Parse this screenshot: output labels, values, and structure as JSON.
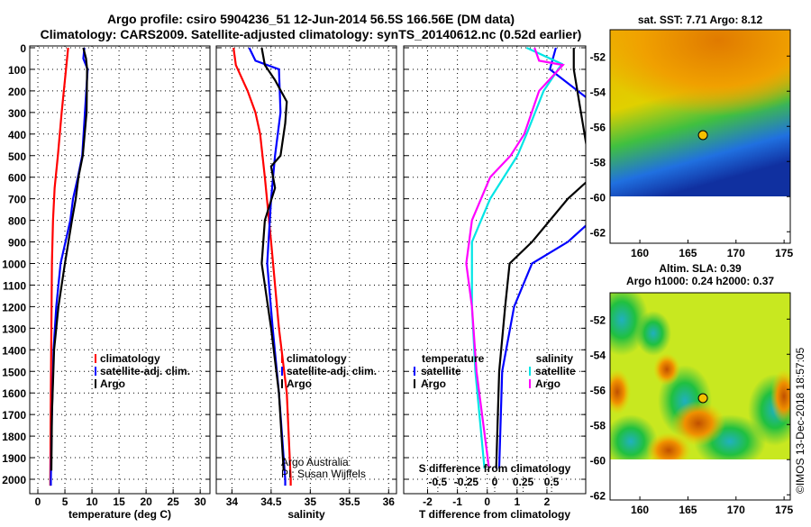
{
  "title_line1": "Argo profile: csiro 5904236_51 12-Jun-2014 56.5S 166.56E (DM data)",
  "title_line2": "Climatology: CARS2009. Satellite-adjusted climatology: synTS_20140612.nc (0.52d earlier)",
  "colors": {
    "climatology": "#ff0000",
    "satellite": "#0000ff",
    "argo": "#000000",
    "salinity_satellite": "#00e5e5",
    "salinity_argo": "#ff00ff"
  },
  "chart_data": [
    {
      "type": "line",
      "id": "temperature",
      "xlabel": "temperature (deg C)",
      "ylabel": "depth",
      "xlim": [
        -1.5,
        31.8
      ],
      "ylim": [
        0,
        2050
      ],
      "xticks": [
        "0",
        "5",
        "10",
        "15",
        "20",
        "25",
        "30"
      ],
      "yticks": [
        "0",
        "100",
        "200",
        "300",
        "400",
        "500",
        "600",
        "700",
        "800",
        "900",
        "1000",
        "1100",
        "1200",
        "1300",
        "1400",
        "1500",
        "1600",
        "1700",
        "1800",
        "1900",
        "2000"
      ],
      "legend": [
        "climatology",
        "satellite-adj. clim.",
        "Argo"
      ],
      "series": [
        {
          "name": "climatology",
          "depth": [
            0,
            100,
            300,
            500,
            650,
            800,
            1000,
            1300,
            1600,
            2000,
            2030
          ],
          "values": [
            5.6,
            5.2,
            4.4,
            3.7,
            3.1,
            2.8,
            2.6,
            2.5,
            2.4,
            2.3,
            2.3
          ]
        },
        {
          "name": "satellite-adj. clim.",
          "depth": [
            0,
            50,
            100,
            300,
            500,
            600,
            700,
            800,
            1000,
            1200,
            1400,
            1700,
            2000,
            2030
          ],
          "values": [
            8.6,
            8.4,
            9.2,
            8.7,
            8.2,
            7.4,
            6.5,
            6.0,
            4.2,
            3.4,
            2.9,
            2.6,
            2.4,
            2.4
          ]
        },
        {
          "name": "Argo",
          "depth": [
            0,
            50,
            100,
            300,
            500,
            600,
            700,
            800,
            1000,
            1200,
            1400,
            1700,
            1960
          ],
          "values": [
            8.4,
            8.9,
            9.1,
            9.0,
            8.3,
            7.5,
            7.0,
            6.3,
            5.0,
            3.8,
            3.0,
            2.6,
            2.5
          ]
        }
      ]
    },
    {
      "type": "line",
      "id": "salinity",
      "xlabel": "salinity",
      "xlim": [
        33.8,
        36.1
      ],
      "ylim": [
        0,
        2050
      ],
      "xticks": [
        "34",
        "34.5",
        "35",
        "35.5",
        "36"
      ],
      "legend": [
        "climatology",
        "satellite-adj. clim.",
        "Argo"
      ],
      "annotation": [
        "Argo Australia",
        "PI: Susan Wijffels"
      ],
      "series": [
        {
          "name": "climatology",
          "depth": [
            0,
            80,
            200,
            300,
            400,
            600,
            900,
            1300,
            1600,
            2000,
            2030
          ],
          "values": [
            34.02,
            34.05,
            34.2,
            34.3,
            34.36,
            34.42,
            34.5,
            34.6,
            34.7,
            34.75,
            34.75
          ]
        },
        {
          "name": "satellite-adj. clim.",
          "depth": [
            0,
            60,
            100,
            300,
            500,
            700,
            1000,
            1300,
            1600,
            2000,
            2030
          ],
          "values": [
            34.22,
            34.3,
            34.6,
            34.62,
            34.55,
            34.5,
            34.45,
            34.52,
            34.6,
            34.68,
            34.68
          ]
        },
        {
          "name": "Argo",
          "depth": [
            0,
            80,
            150,
            250,
            350,
            500,
            550,
            650,
            800,
            1000,
            1300,
            1600,
            1960
          ],
          "values": [
            34.38,
            34.42,
            34.55,
            34.7,
            34.68,
            34.62,
            34.5,
            34.55,
            34.42,
            34.38,
            34.5,
            34.6,
            34.66
          ]
        }
      ]
    },
    {
      "type": "line",
      "id": "difference",
      "xlabel": "T difference from climatology",
      "xlabel2": "S difference from climatology",
      "xlim": [
        -2.8,
        3.3
      ],
      "xlim2": [
        -0.8,
        0.8
      ],
      "ylim": [
        0,
        2050
      ],
      "xticks": [
        "-2",
        "-1",
        "0",
        "1",
        "2"
      ],
      "xticks2": [
        "-0.5",
        "-0.25",
        "0",
        "0.25",
        "0.5"
      ],
      "legend_temperature": {
        "title": "temperature",
        "items": [
          "satellite",
          "Argo"
        ]
      },
      "legend_salinity": {
        "title": "salinity",
        "items": [
          "satellite",
          "Argo"
        ]
      },
      "series": [
        {
          "name": "T satellite",
          "axis": "T",
          "depth": [
            0,
            100,
            250,
            800,
            900,
            1000,
            1200,
            1500,
            1950
          ],
          "values": [
            2.3,
            2.1,
            3.5,
            3.5,
            2.7,
            1.5,
            0.9,
            0.5,
            0.4
          ]
        },
        {
          "name": "T Argo",
          "axis": "T",
          "depth": [
            0,
            100,
            600,
            700,
            900,
            1000,
            1200,
            1500,
            1950
          ],
          "values": [
            2.9,
            2.9,
            3.5,
            2.7,
            1.5,
            0.75,
            0.6,
            0.4,
            0.3
          ]
        },
        {
          "name": "S satellite",
          "axis": "S",
          "depth": [
            0,
            75,
            200,
            400,
            500,
            700,
            900,
            1200,
            1500,
            1950
          ],
          "values": [
            0.28,
            0.59,
            0.43,
            0.28,
            0.2,
            -0.04,
            -0.2,
            -0.2,
            -0.17,
            -0.09
          ]
        },
        {
          "name": "S Argo",
          "axis": "S",
          "depth": [
            0,
            60,
            80,
            200,
            400,
            500,
            600,
            800,
            1000,
            1200,
            1500,
            1950
          ],
          "values": [
            0.35,
            0.39,
            0.6,
            0.39,
            0.26,
            0.14,
            -0.04,
            -0.2,
            -0.25,
            -0.2,
            -0.16,
            -0.05
          ]
        }
      ]
    }
  ],
  "maps": [
    {
      "title": "sat. SST: 7.71 Argo: 8.12",
      "xticks": [
        "160",
        "165",
        "170",
        "175"
      ],
      "yticks": [
        "-52",
        "-54",
        "-56",
        "-58",
        "-60",
        "-62"
      ],
      "marker": {
        "lon": 166.56,
        "lat": -56.5
      }
    },
    {
      "title": "Altim. SLA: 0.39",
      "subtitle": "Argo h1000: 0.24 h2000: 0.37",
      "xticks": [
        "160",
        "165",
        "170",
        "175"
      ],
      "yticks": [
        "-52",
        "-54",
        "-56",
        "-58",
        "-60",
        "-62"
      ],
      "marker": {
        "lon": 166.56,
        "lat": -56.5
      }
    }
  ],
  "credit": "©IMOS 13-Dec-2018 18:57:05"
}
